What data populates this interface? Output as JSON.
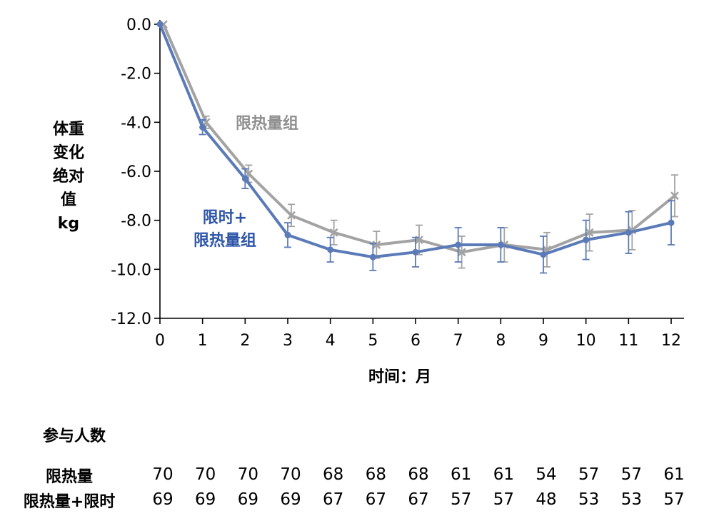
{
  "chart_data": {
    "type": "line",
    "title": "",
    "xlabel": "时间：月",
    "ylabel_lines": [
      "体重",
      "变化",
      "绝对",
      "值",
      "kg"
    ],
    "x": [
      0,
      1,
      2,
      3,
      4,
      5,
      6,
      7,
      8,
      9,
      10,
      11,
      12
    ],
    "xlim": [
      0,
      12
    ],
    "ylim": [
      -12.0,
      0.0
    ],
    "yticks": [
      "0.0",
      "-2.0",
      "-4.0",
      "-6.0",
      "-8.0",
      "-10.0",
      "-12.0"
    ],
    "ytick_values": [
      0,
      -2,
      -4,
      -6,
      -8,
      -10,
      -12
    ],
    "grid": false,
    "series": [
      {
        "name": "限热量组",
        "color": "#a3a3a3",
        "marker": "x",
        "values": [
          0.0,
          -4.0,
          -6.1,
          -7.8,
          -8.5,
          -9.0,
          -8.8,
          -9.3,
          -9.0,
          -9.2,
          -8.5,
          -8.4,
          -7.0
        ],
        "error": [
          0,
          0.25,
          0.35,
          0.45,
          0.5,
          0.55,
          0.6,
          0.65,
          0.7,
          0.7,
          0.75,
          0.8,
          0.85
        ]
      },
      {
        "name": "限时+限热量组",
        "color": "#5a7ab8",
        "marker": "circle",
        "values": [
          0.0,
          -4.2,
          -6.3,
          -8.6,
          -9.2,
          -9.5,
          -9.3,
          -9.0,
          -9.0,
          -9.4,
          -8.8,
          -8.5,
          -8.1
        ],
        "error": [
          0,
          0.3,
          0.4,
          0.5,
          0.5,
          0.55,
          0.6,
          0.7,
          0.7,
          0.75,
          0.8,
          0.85,
          0.9
        ]
      }
    ]
  },
  "annotations": {
    "gray_label": "限热量组",
    "blue_label_line1": "限时+",
    "blue_label_line2": "限热量组"
  },
  "participants": {
    "title": "参与人数",
    "rows": [
      {
        "label": "限热量",
        "values": [
          "70",
          "70",
          "70",
          "70",
          "68",
          "68",
          "68",
          "61",
          "61",
          "54",
          "57",
          "57",
          "61"
        ]
      },
      {
        "label": "限热量+限时",
        "values": [
          "69",
          "69",
          "69",
          "69",
          "67",
          "67",
          "67",
          "57",
          "57",
          "48",
          "53",
          "53",
          "57"
        ]
      }
    ]
  }
}
